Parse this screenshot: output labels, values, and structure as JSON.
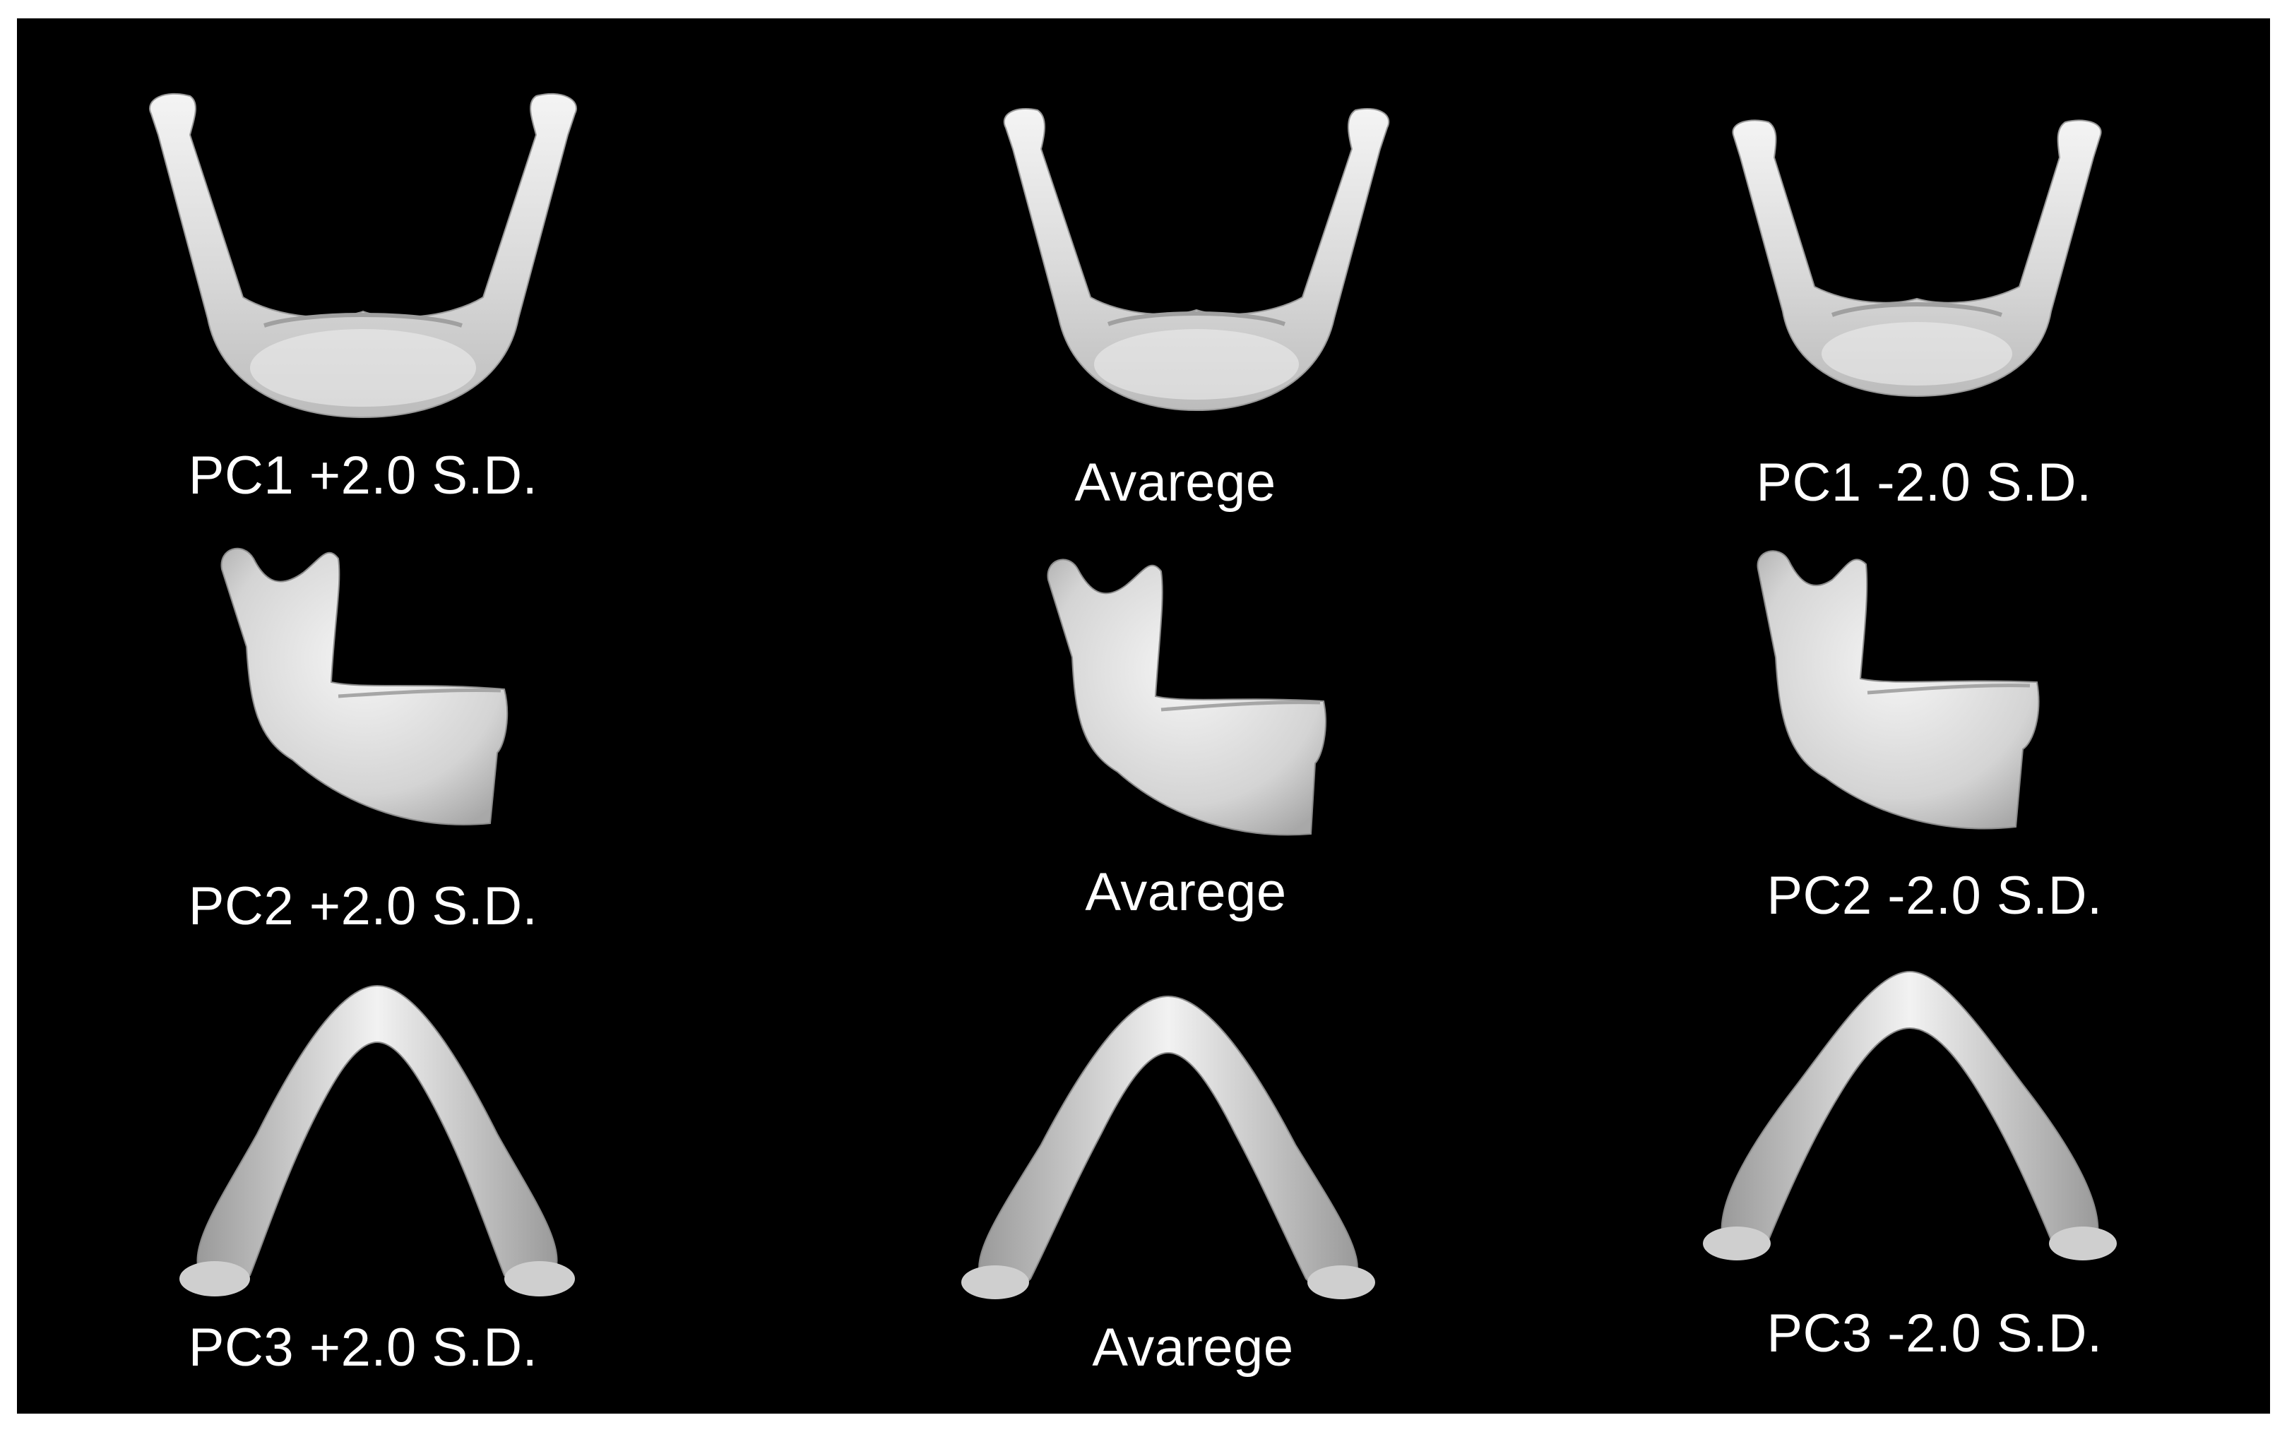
{
  "figure": {
    "background_color": "#000000",
    "page_background_color": "#ffffff",
    "bone_color": "#e6e6e6",
    "rows": [
      {
        "view": "frontal",
        "panels": [
          {
            "label": "PC1 +2.0 S.D."
          },
          {
            "label": "Avarege"
          },
          {
            "label": "PC1 -2.0 S.D."
          }
        ]
      },
      {
        "view": "lateral",
        "panels": [
          {
            "label": "PC2 +2.0 S.D."
          },
          {
            "label": "Avarege"
          },
          {
            "label": "PC2 -2.0 S.D."
          }
        ]
      },
      {
        "view": "inferior",
        "panels": [
          {
            "label": "PC3 +2.0 S.D."
          },
          {
            "label": "Avarege"
          },
          {
            "label": "PC3 -2.0 S.D."
          }
        ]
      }
    ]
  }
}
